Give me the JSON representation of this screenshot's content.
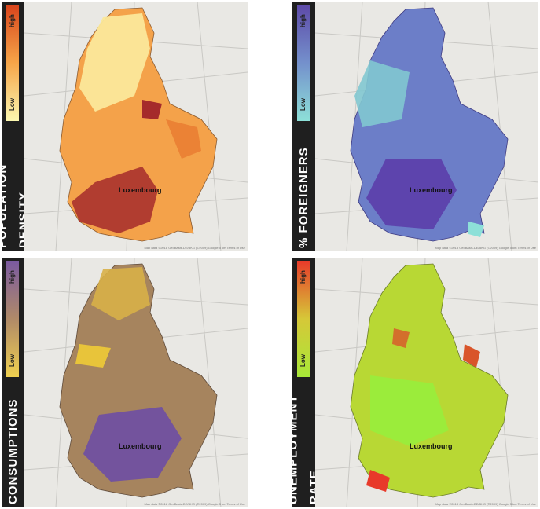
{
  "panels": [
    {
      "title": "POPULATION DENSITY",
      "high": "high",
      "low": "Low",
      "city": "Luxembourg",
      "colors": {
        "gradient_top": "#d9441c",
        "gradient_bottom": "#fbf7b0",
        "fill_main": "#f4a24a",
        "fill_light": "#fbe89a",
        "fill_dark": "#a52b2b"
      }
    },
    {
      "title": "% FOREIGNERS",
      "high": "high",
      "low": "Low",
      "city": "Luxembourg",
      "colors": {
        "gradient_top": "#5d4aa8",
        "gradient_bottom": "#8de0d8",
        "fill_main": "#6c7ec8",
        "fill_light": "#82c8d0",
        "fill_dark": "#5a3aa8"
      }
    },
    {
      "title": "CONSUMPTIONS",
      "high": "high",
      "low": "Low",
      "city": "Luxembourg",
      "colors": {
        "gradient_top": "#7a5aa0",
        "gradient_bottom": "#efd050",
        "fill_main": "#a6845e",
        "fill_light": "#d8b048",
        "fill_dark": "#6a4aa8"
      }
    },
    {
      "title": "UNEMPLOYMENT RATE",
      "high": "high",
      "low": "Low",
      "city": "Luxembourg",
      "colors": {
        "gradient_top": "#e83a2a",
        "gradient_bottom": "#a8e838",
        "fill_main": "#b8d834",
        "fill_light": "#98ee3c",
        "fill_dark": "#d9552a"
      }
    }
  ],
  "attribution": "Map data ©2018 GeoBasis-DE/BKG (©2009) Google   5 km   Terms of Use"
}
